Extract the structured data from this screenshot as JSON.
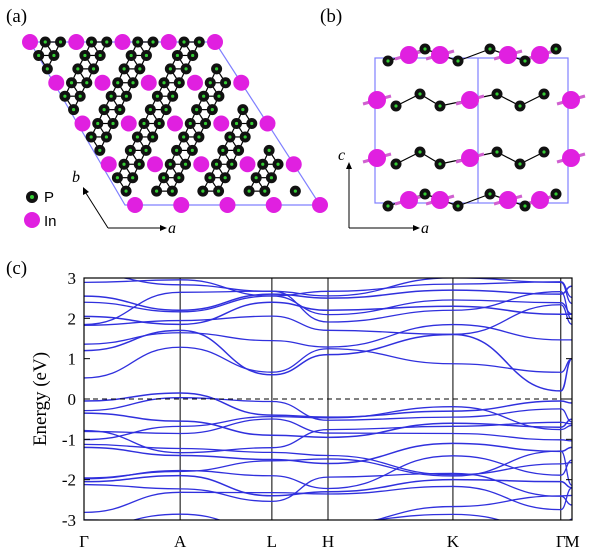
{
  "panels": {
    "a_label": "(a)",
    "b_label": "(b)",
    "c_label": "(c)"
  },
  "structure_a": {
    "axis_a": "a",
    "axis_b": "b",
    "legend": [
      {
        "label": "P",
        "color": "#111111"
      },
      {
        "label": "In",
        "color": "#e020e0"
      }
    ]
  },
  "structure_b": {
    "axis_a": "a",
    "axis_c": "c"
  },
  "colors": {
    "band": "#3030dd",
    "cell": "#8080ff",
    "indium": "#e020e0",
    "phosphorus": "#111111",
    "bond_p": "#000000",
    "bond_in": "#d060d0"
  },
  "chart_data": {
    "type": "line",
    "ylabel": "Energy (eV)",
    "ylim": [
      -3,
      3
    ],
    "yticks": [
      "3",
      "2",
      "1",
      "0",
      "-1",
      "-2",
      "-3"
    ],
    "ytick_values": [
      3,
      2,
      1,
      0,
      -1,
      -2,
      -3
    ],
    "kpoints": [
      "Γ",
      "A",
      "L",
      "H",
      "K",
      "Γ",
      "M"
    ],
    "kpoint_positions": [
      0,
      0.197,
      0.385,
      0.5,
      0.756,
      0.977,
      1.0
    ],
    "fermi_level": 0,
    "grid": false,
    "bands_sample": [
      {
        "name": "",
        "values": [
          2.55,
          2.2,
          2.6,
          2.5,
          2.7,
          2.6,
          2.8
        ]
      },
      {
        "name": "",
        "values": [
          2.05,
          1.85,
          2.4,
          2.2,
          2.3,
          2.1,
          2.1
        ]
      },
      {
        "name": "",
        "values": [
          1.2,
          1.7,
          0.6,
          1.1,
          1.6,
          0.2,
          1.0
        ]
      },
      {
        "name": "",
        "values": [
          -0.05,
          0.15,
          -0.4,
          -0.45,
          -0.3,
          -0.05,
          -0.1
        ]
      },
      {
        "name": "",
        "values": [
          -0.35,
          -0.55,
          -0.9,
          -0.95,
          -0.6,
          -0.7,
          -0.5
        ]
      },
      {
        "name": "",
        "values": [
          -1.2,
          -1.4,
          -1.5,
          -1.6,
          -1.1,
          -1.3,
          -1.2
        ]
      },
      {
        "name": "",
        "values": [
          -2.05,
          -1.9,
          -2.4,
          -2.3,
          -2.0,
          -2.05,
          -2.2
        ]
      }
    ]
  }
}
